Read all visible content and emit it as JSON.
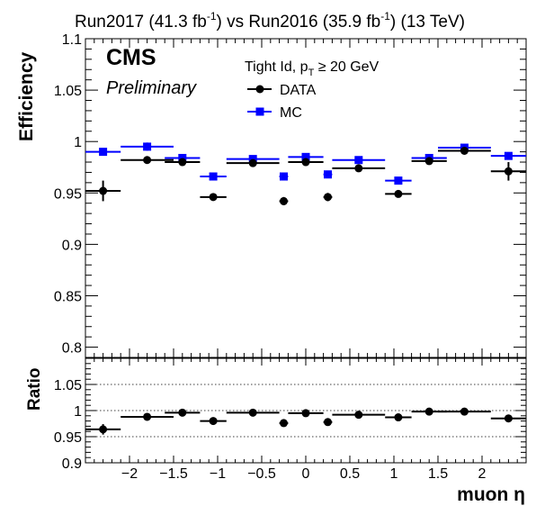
{
  "header": {
    "title_left": "Run2017 (41.3 fb",
    "title_left_sup": "-1",
    "title_mid": ") vs Run2016 (35.9 fb",
    "title_mid_sup": "-1",
    "title_right": ") (13 TeV)"
  },
  "labels": {
    "cms": "CMS",
    "preliminary": "Preliminary",
    "selection_a": "Tight Id, p",
    "selection_sub": "T",
    "selection_b": " ≥ 20 GeV"
  },
  "chart_data": {
    "type": "scatter",
    "top_panel": {
      "ylabel": "Efficiency",
      "ylim": [
        0.79,
        1.1
      ],
      "yticks": [
        0.8,
        0.85,
        0.9,
        0.95,
        1,
        1.05,
        1.1
      ],
      "ytick_labels": [
        "0.8",
        "0.85",
        "0.9",
        "0.95",
        "1",
        "1.05",
        "1.1"
      ],
      "legend_position": "top-center",
      "series": [
        {
          "name": "DATA",
          "color": "#000000",
          "marker": "circle",
          "points": [
            {
              "x": -2.3,
              "xerr": 0.2,
              "y": 0.952,
              "yerr": 0.01
            },
            {
              "x": -1.8,
              "xerr": 0.3,
              "y": 0.982,
              "yerr": 0.002
            },
            {
              "x": -1.4,
              "xerr": 0.2,
              "y": 0.98,
              "yerr": 0.002
            },
            {
              "x": -1.05,
              "xerr": 0.15,
              "y": 0.946,
              "yerr": 0.002
            },
            {
              "x": -0.6,
              "xerr": 0.3,
              "y": 0.979,
              "yerr": 0.002
            },
            {
              "x": -0.25,
              "xerr": 0.05,
              "y": 0.942,
              "yerr": 0.004
            },
            {
              "x": 0.0,
              "xerr": 0.2,
              "y": 0.98,
              "yerr": 0.002
            },
            {
              "x": 0.25,
              "xerr": 0.05,
              "y": 0.946,
              "yerr": 0.004
            },
            {
              "x": 0.6,
              "xerr": 0.3,
              "y": 0.974,
              "yerr": 0.002
            },
            {
              "x": 1.05,
              "xerr": 0.15,
              "y": 0.949,
              "yerr": 0.002
            },
            {
              "x": 1.4,
              "xerr": 0.2,
              "y": 0.981,
              "yerr": 0.002
            },
            {
              "x": 1.8,
              "xerr": 0.3,
              "y": 0.991,
              "yerr": 0.002
            },
            {
              "x": 2.3,
              "xerr": 0.2,
              "y": 0.971,
              "yerr": 0.009
            }
          ]
        },
        {
          "name": "MC",
          "color": "#0000ff",
          "marker": "square",
          "points": [
            {
              "x": -2.3,
              "xerr": 0.2,
              "y": 0.99,
              "yerr": 0.001
            },
            {
              "x": -1.8,
              "xerr": 0.3,
              "y": 0.995,
              "yerr": 0.004
            },
            {
              "x": -1.4,
              "xerr": 0.2,
              "y": 0.984,
              "yerr": 0.001
            },
            {
              "x": -1.05,
              "xerr": 0.15,
              "y": 0.966,
              "yerr": 0.001
            },
            {
              "x": -0.6,
              "xerr": 0.3,
              "y": 0.983,
              "yerr": 0.001
            },
            {
              "x": -0.25,
              "xerr": 0.05,
              "y": 0.966,
              "yerr": 0.001
            },
            {
              "x": 0.0,
              "xerr": 0.2,
              "y": 0.985,
              "yerr": 0.001
            },
            {
              "x": 0.25,
              "xerr": 0.05,
              "y": 0.968,
              "yerr": 0.001
            },
            {
              "x": 0.6,
              "xerr": 0.3,
              "y": 0.982,
              "yerr": 0.001
            },
            {
              "x": 1.05,
              "xerr": 0.15,
              "y": 0.962,
              "yerr": 0.001
            },
            {
              "x": 1.4,
              "xerr": 0.2,
              "y": 0.984,
              "yerr": 0.001
            },
            {
              "x": 1.8,
              "xerr": 0.3,
              "y": 0.994,
              "yerr": 0.001
            },
            {
              "x": 2.3,
              "xerr": 0.2,
              "y": 0.986,
              "yerr": 0.001
            }
          ]
        }
      ]
    },
    "ratio_panel": {
      "ylabel": "Ratio",
      "ylim": [
        0.9,
        1.1
      ],
      "yticks": [
        0.9,
        0.95,
        1,
        1.05
      ],
      "ytick_labels": [
        "0.9",
        "0.95",
        "1",
        "1.05"
      ],
      "dotted_lines": [
        0.95,
        1.0,
        1.05
      ],
      "series": [
        {
          "name": "DATA",
          "color": "#000000",
          "points": [
            {
              "x": -2.3,
              "xerr": 0.2,
              "y": 0.964,
              "yerr": 0.01
            },
            {
              "x": -1.8,
              "xerr": 0.3,
              "y": 0.988,
              "yerr": 0.002
            },
            {
              "x": -1.4,
              "xerr": 0.2,
              "y": 0.996,
              "yerr": 0.002
            },
            {
              "x": -1.05,
              "xerr": 0.15,
              "y": 0.98,
              "yerr": 0.002
            },
            {
              "x": -0.6,
              "xerr": 0.3,
              "y": 0.996,
              "yerr": 0.002
            },
            {
              "x": -0.25,
              "xerr": 0.05,
              "y": 0.976,
              "yerr": 0.004
            },
            {
              "x": 0.0,
              "xerr": 0.2,
              "y": 0.995,
              "yerr": 0.002
            },
            {
              "x": 0.25,
              "xerr": 0.05,
              "y": 0.978,
              "yerr": 0.004
            },
            {
              "x": 0.6,
              "xerr": 0.3,
              "y": 0.992,
              "yerr": 0.002
            },
            {
              "x": 1.05,
              "xerr": 0.15,
              "y": 0.987,
              "yerr": 0.002
            },
            {
              "x": 1.4,
              "xerr": 0.2,
              "y": 0.998,
              "yerr": 0.002
            },
            {
              "x": 1.8,
              "xerr": 0.3,
              "y": 0.998,
              "yerr": 0.002
            },
            {
              "x": 2.3,
              "xerr": 0.2,
              "y": 0.985,
              "yerr": 0.007
            }
          ]
        }
      ]
    },
    "x_axis": {
      "xlabel": "muon η",
      "xlim": [
        -2.5,
        2.5
      ],
      "xticks": [
        -2,
        -1.5,
        -1,
        -0.5,
        0,
        0.5,
        1,
        1.5,
        2
      ],
      "xtick_labels": [
        "−2",
        "−1.5",
        "−1",
        "−0.5",
        "0",
        "0.5",
        "1",
        "1.5",
        "2"
      ]
    }
  }
}
